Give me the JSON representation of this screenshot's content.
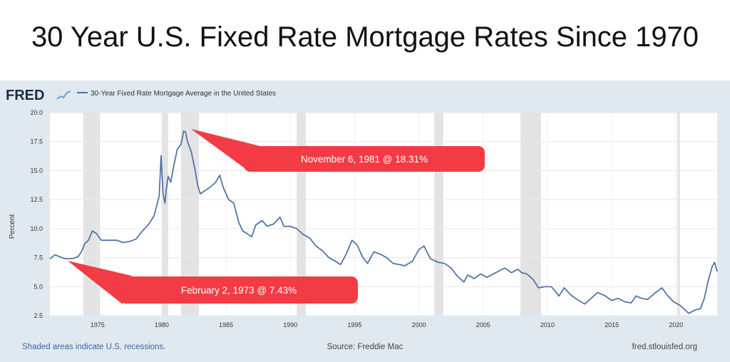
{
  "title": "30 Year U.S. Fixed Rate Mortgage Rates Since 1970",
  "logo": "FRED",
  "footer": {
    "recession_note": "Shaded areas indicate U.S. recessions.",
    "source": "Source: Freddie Mac",
    "site": "fred.stlouisfed.org"
  },
  "colors": {
    "line": "#4a6fa3",
    "panel_bg": "#e1e9f0",
    "recession": "#e3e3e3",
    "callout": "#f23b44",
    "footer_link": "#3a66a8"
  },
  "chart_data": {
    "type": "line",
    "ylabel": "Percent",
    "ylim": [
      2.5,
      20.0
    ],
    "xlim": [
      1971.3,
      2023.2
    ],
    "yticks": [
      "2.5",
      "5.0",
      "7.5",
      "10.0",
      "12.5",
      "15.0",
      "17.5",
      "20.0"
    ],
    "xticks": [
      "1975",
      "1980",
      "1985",
      "1990",
      "1995",
      "2000",
      "2005",
      "2010",
      "2015",
      "2020"
    ],
    "grid": true,
    "legend": "top-left",
    "series": [
      {
        "name": "30-Year Fixed Rate Mortgage Average in the United States",
        "x": [
          1971.3,
          1971.7,
          1972.0,
          1972.5,
          1973.1,
          1973.5,
          1973.8,
          1974.0,
          1974.3,
          1974.6,
          1974.9,
          1975.3,
          1975.6,
          1976.0,
          1976.5,
          1977.0,
          1977.5,
          1978.0,
          1978.5,
          1979.0,
          1979.4,
          1979.8,
          1979.95,
          1980.1,
          1980.25,
          1980.35,
          1980.5,
          1980.7,
          1980.9,
          1981.2,
          1981.5,
          1981.7,
          1981.85,
          1982.0,
          1982.3,
          1982.6,
          1982.8,
          1983.0,
          1983.4,
          1983.8,
          1984.2,
          1984.5,
          1984.8,
          1985.2,
          1985.6,
          1986.0,
          1986.3,
          1986.6,
          1987.0,
          1987.3,
          1987.8,
          1988.2,
          1988.7,
          1989.2,
          1989.5,
          1990.0,
          1990.5,
          1991.0,
          1991.5,
          1992.0,
          1992.5,
          1993.0,
          1993.5,
          1993.9,
          1994.3,
          1994.8,
          1995.2,
          1995.6,
          1996.0,
          1996.5,
          1997.0,
          1997.5,
          1998.0,
          1998.5,
          1998.9,
          1999.5,
          2000.0,
          2000.4,
          2000.9,
          2001.5,
          2002.0,
          2002.5,
          2003.0,
          2003.5,
          2003.8,
          2004.3,
          2004.8,
          2005.3,
          2005.8,
          2006.3,
          2006.7,
          2007.2,
          2007.7,
          2008.0,
          2008.4,
          2008.9,
          2009.3,
          2009.8,
          2010.3,
          2010.9,
          2011.3,
          2011.8,
          2012.3,
          2012.9,
          2013.5,
          2013.9,
          2014.5,
          2015.0,
          2015.5,
          2016.0,
          2016.5,
          2016.9,
          2017.3,
          2017.8,
          2018.3,
          2018.9,
          2019.3,
          2019.8,
          2020.3,
          2020.8,
          2021.0,
          2021.5,
          2021.9,
          2022.2,
          2022.5,
          2022.8,
          2023.0,
          2023.2
        ],
        "values": [
          7.4,
          7.75,
          7.6,
          7.4,
          7.43,
          7.6,
          8.1,
          8.7,
          9.0,
          9.8,
          9.6,
          9.0,
          9.0,
          9.0,
          9.0,
          8.8,
          8.9,
          9.1,
          9.8,
          10.4,
          11.1,
          12.8,
          16.3,
          13.0,
          12.2,
          13.4,
          14.5,
          14.0,
          15.2,
          16.8,
          17.3,
          18.4,
          18.31,
          17.5,
          16.6,
          15.0,
          13.7,
          13.0,
          13.3,
          13.6,
          14.0,
          14.6,
          13.5,
          12.5,
          12.2,
          10.5,
          9.8,
          9.6,
          9.3,
          10.3,
          10.7,
          10.2,
          10.4,
          11.0,
          10.2,
          10.2,
          10.0,
          9.5,
          9.2,
          8.5,
          8.1,
          7.5,
          7.2,
          6.9,
          7.7,
          9.0,
          8.6,
          7.6,
          7.0,
          8.0,
          7.8,
          7.5,
          7.0,
          6.9,
          6.8,
          7.2,
          8.2,
          8.5,
          7.4,
          7.1,
          7.0,
          6.6,
          5.9,
          5.4,
          6.0,
          5.7,
          6.1,
          5.8,
          6.1,
          6.4,
          6.6,
          6.2,
          6.5,
          6.2,
          6.1,
          5.6,
          4.9,
          5.0,
          5.0,
          4.2,
          4.9,
          4.3,
          3.9,
          3.5,
          4.1,
          4.5,
          4.2,
          3.8,
          4.0,
          3.7,
          3.6,
          4.2,
          4.0,
          3.9,
          4.4,
          4.9,
          4.3,
          3.7,
          3.4,
          2.9,
          2.7,
          3.0,
          3.1,
          4.0,
          5.5,
          6.7,
          7.1,
          6.3
        ]
      }
    ],
    "recessions": [
      [
        1973.9,
        1975.2
      ],
      [
        1980.0,
        1980.5
      ],
      [
        1981.5,
        1982.9
      ],
      [
        1990.5,
        1991.2
      ],
      [
        2001.2,
        2001.9
      ],
      [
        2007.9,
        2009.5
      ],
      [
        2020.1,
        2020.3
      ]
    ],
    "annotations": [
      {
        "text": "November 6, 1981 @ 18.31%",
        "x": 1981.85,
        "y": 18.31
      },
      {
        "text": "February 2, 1973 @ 7.43%",
        "x": 1973.1,
        "y": 7.43
      }
    ]
  }
}
